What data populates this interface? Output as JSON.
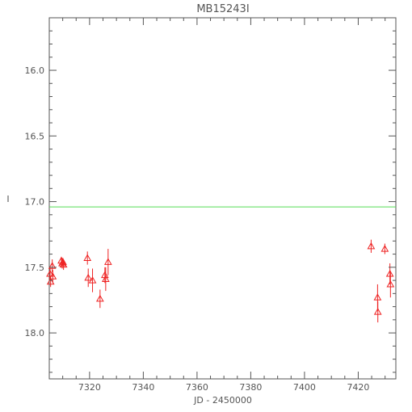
{
  "chart_data": {
    "type": "scatter",
    "title": "MB15243I",
    "xlabel": "JD - 2450000",
    "ylabel": "I",
    "xlim": [
      7305,
      7434
    ],
    "ylim": [
      18.35,
      15.6
    ],
    "y_inverted": true,
    "x_major_ticks": [
      7320,
      7340,
      7360,
      7380,
      7400,
      7420
    ],
    "x_tick_labels": [
      "7320",
      "7340",
      "7360",
      "7380",
      "7400",
      "7420"
    ],
    "y_major_ticks": [
      16.0,
      16.5,
      17.0,
      17.5,
      18.0
    ],
    "y_tick_labels": [
      "16.0",
      "16.5",
      "17.0",
      "17.5",
      "18.0"
    ],
    "grid": false,
    "reference_line": {
      "y": 17.04,
      "color": "#55dd55"
    },
    "series": [
      {
        "marker": "open-triangle",
        "color": "#ee2222",
        "points": [
          {
            "x": 7305.3,
            "y": 17.55,
            "err": 0.05
          },
          {
            "x": 7305.5,
            "y": 17.61,
            "err": 0.04
          },
          {
            "x": 7306.1,
            "y": 17.49,
            "err": 0.05
          },
          {
            "x": 7306.3,
            "y": 17.57,
            "err": 0.05
          },
          {
            "x": 7309.5,
            "y": 17.45,
            "err": 0.03
          },
          {
            "x": 7309.8,
            "y": 17.47,
            "err": 0.04
          },
          {
            "x": 7310.1,
            "y": 17.46,
            "err": 0.03
          },
          {
            "x": 7310.3,
            "y": 17.48,
            "err": 0.04
          },
          {
            "x": 7319.2,
            "y": 17.43,
            "err": 0.05
          },
          {
            "x": 7319.5,
            "y": 17.58,
            "err": 0.07
          },
          {
            "x": 7321.1,
            "y": 17.6,
            "err": 0.09
          },
          {
            "x": 7323.9,
            "y": 17.74,
            "err": 0.07
          },
          {
            "x": 7325.7,
            "y": 17.56,
            "err": 0.06
          },
          {
            "x": 7326.0,
            "y": 17.59,
            "err": 0.09
          },
          {
            "x": 7326.9,
            "y": 17.46,
            "err": 0.1
          },
          {
            "x": 7424.8,
            "y": 17.34,
            "err": 0.05
          },
          {
            "x": 7427.2,
            "y": 17.73,
            "err": 0.1
          },
          {
            "x": 7427.3,
            "y": 17.84,
            "err": 0.08
          },
          {
            "x": 7429.9,
            "y": 17.36,
            "err": 0.04
          },
          {
            "x": 7431.8,
            "y": 17.55,
            "err": 0.08
          },
          {
            "x": 7432.0,
            "y": 17.63,
            "err": 0.1
          }
        ]
      }
    ]
  }
}
